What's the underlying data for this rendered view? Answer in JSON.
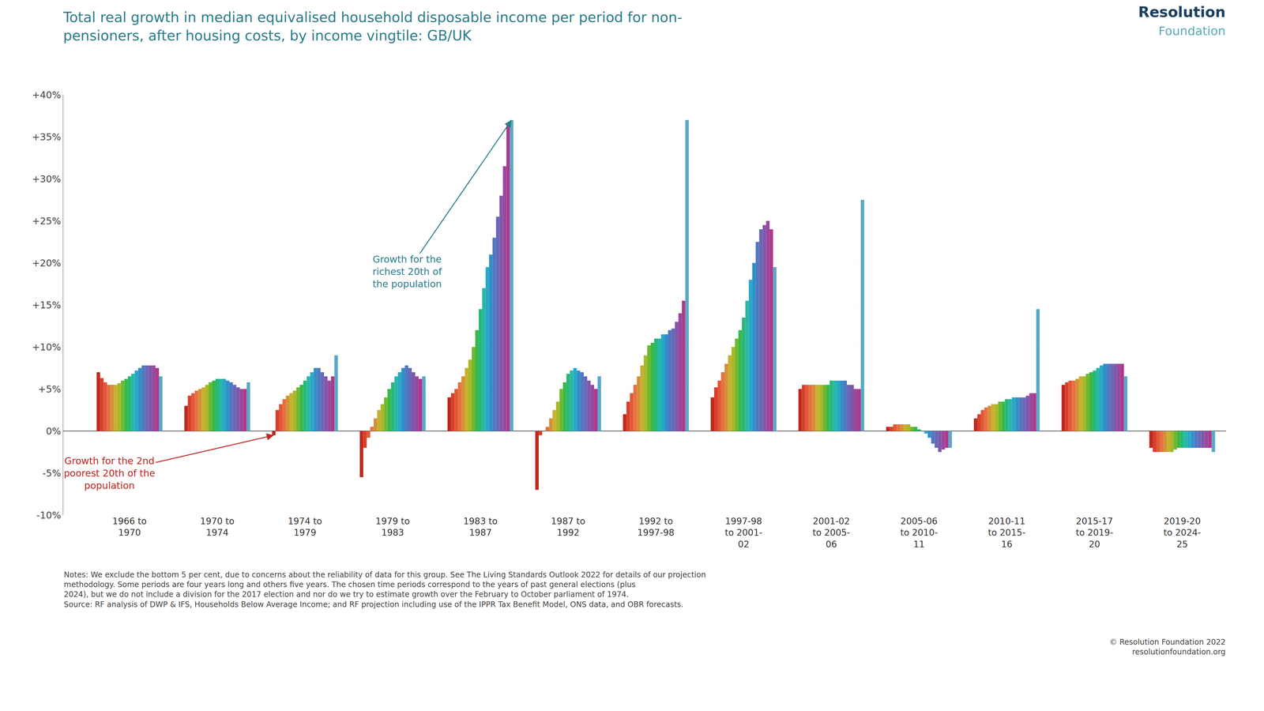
{
  "chart_data": {
    "type": "bar",
    "title": "Total real growth in median equivalised household disposable income per period for non-\npensioners, after housing costs, by income vingtile: GB/UK",
    "categories": [
      "1966 to\n1970",
      "1970 to\n1974",
      "1974 to\n1979",
      "1979 to\n1983",
      "1983 to\n1987",
      "1987 to\n1992",
      "1992 to\n1997-98",
      "1997-98\nto 2001-\n02",
      "2001-02\nto 2005-\n06",
      "2005-06\nto 2010-\n11",
      "2010-11\nto 2015-\n16",
      "2015-17\nto 2019-\n20",
      "2019-20\nto 2024-\n25"
    ],
    "series": [
      {
        "color": "#c0281e",
        "values": [
          7.0,
          3.0,
          -0.5,
          -5.5,
          4.0,
          -7.0,
          2.0,
          4.0,
          5.0,
          0.5,
          1.5,
          5.5,
          -2.0
        ]
      },
      {
        "color": "#d93f2a",
        "values": [
          6.3,
          4.2,
          2.5,
          -2.0,
          4.5,
          -0.5,
          3.5,
          5.2,
          5.5,
          0.5,
          2.0,
          5.8,
          -2.5
        ]
      },
      {
        "color": "#e05838",
        "values": [
          5.8,
          4.5,
          3.2,
          -0.8,
          5.0,
          0.0,
          4.5,
          6.0,
          5.5,
          0.8,
          2.5,
          6.0,
          -2.5
        ]
      },
      {
        "color": "#e87040",
        "values": [
          5.5,
          4.8,
          3.8,
          0.5,
          5.8,
          0.5,
          5.5,
          7.0,
          5.5,
          0.8,
          2.8,
          6.0,
          -2.5
        ]
      },
      {
        "color": "#d49038",
        "values": [
          5.5,
          5.0,
          4.2,
          1.5,
          6.5,
          1.5,
          6.5,
          8.0,
          5.5,
          0.8,
          3.0,
          6.2,
          -2.5
        ]
      },
      {
        "color": "#c8b030",
        "values": [
          5.5,
          5.2,
          4.5,
          2.5,
          7.5,
          2.5,
          7.8,
          9.0,
          5.5,
          0.8,
          3.2,
          6.5,
          -2.5
        ]
      },
      {
        "color": "#a8b828",
        "values": [
          5.7,
          5.5,
          4.8,
          3.2,
          8.5,
          3.5,
          9.0,
          10.0,
          5.5,
          0.8,
          3.2,
          6.5,
          -2.5
        ]
      },
      {
        "color": "#70b830",
        "values": [
          6.0,
          5.8,
          5.2,
          4.0,
          10.0,
          5.0,
          10.2,
          11.0,
          5.5,
          0.5,
          3.5,
          6.8,
          -2.2
        ]
      },
      {
        "color": "#38b848",
        "values": [
          6.2,
          6.0,
          5.5,
          5.0,
          12.0,
          5.8,
          10.5,
          12.0,
          5.5,
          0.5,
          3.5,
          7.0,
          -2.0
        ]
      },
      {
        "color": "#28b878",
        "values": [
          6.5,
          6.2,
          6.0,
          5.8,
          14.5,
          6.8,
          11.0,
          13.5,
          6.0,
          0.2,
          3.8,
          7.2,
          -2.0
        ]
      },
      {
        "color": "#28b8a8",
        "values": [
          6.8,
          6.2,
          6.5,
          6.5,
          17.0,
          7.2,
          11.0,
          15.5,
          6.0,
          0.0,
          3.8,
          7.5,
          -2.0
        ]
      },
      {
        "color": "#28a8c8",
        "values": [
          7.2,
          6.2,
          7.0,
          7.0,
          19.5,
          7.5,
          11.5,
          18.0,
          6.0,
          -0.3,
          4.0,
          7.8,
          -2.0
        ]
      },
      {
        "color": "#3090c8",
        "values": [
          7.5,
          6.0,
          7.5,
          7.5,
          21.0,
          7.2,
          11.5,
          20.0,
          6.0,
          -0.8,
          4.0,
          8.0,
          -2.0
        ]
      },
      {
        "color": "#5078c0",
        "values": [
          7.8,
          5.8,
          7.5,
          7.8,
          23.0,
          7.0,
          12.0,
          22.5,
          6.0,
          -1.5,
          4.0,
          8.0,
          -2.0
        ]
      },
      {
        "color": "#6868b8",
        "values": [
          7.8,
          5.5,
          7.0,
          7.5,
          25.5,
          6.5,
          12.2,
          24.0,
          5.5,
          -2.0,
          4.0,
          8.0,
          -2.0
        ]
      },
      {
        "color": "#8058a8",
        "values": [
          7.8,
          5.2,
          6.5,
          7.0,
          28.0,
          6.0,
          13.0,
          24.5,
          5.5,
          -2.5,
          4.2,
          8.0,
          -2.0
        ]
      },
      {
        "color": "#9848a0",
        "values": [
          7.8,
          5.0,
          6.0,
          6.5,
          31.5,
          5.5,
          14.0,
          25.0,
          5.0,
          -2.2,
          4.5,
          8.0,
          -2.0
        ]
      },
      {
        "color": "#b03888",
        "values": [
          7.5,
          5.0,
          6.5,
          6.2,
          36.5,
          5.0,
          15.5,
          24.0,
          5.0,
          -2.0,
          4.5,
          8.0,
          -2.0
        ]
      },
      {
        "color": "#5aa8c8",
        "values": [
          6.5,
          5.8,
          9.0,
          6.5,
          37.0,
          6.5,
          37.0,
          19.5,
          27.5,
          -2.0,
          14.5,
          6.5,
          -2.5
        ]
      }
    ],
    "ylim": [
      -10,
      40
    ],
    "yticks": [
      {
        "value": -10,
        "label": "-10%"
      },
      {
        "value": -5,
        "label": "-5%"
      },
      {
        "value": 0,
        "label": "0%"
      },
      {
        "value": 5,
        "label": "+5%"
      },
      {
        "value": 10,
        "label": "+10%"
      },
      {
        "value": 15,
        "label": "+15%"
      },
      {
        "value": 20,
        "label": "+20%"
      },
      {
        "value": 25,
        "label": "+25%"
      },
      {
        "value": 30,
        "label": "+30%"
      },
      {
        "value": 35,
        "label": "+35%"
      },
      {
        "value": 40,
        "label": "+40%"
      }
    ],
    "grid": true,
    "annotations": [
      {
        "text": "Growth for the\nrichest 20th of\nthe population",
        "category": "1983 to\n1987",
        "color": "#2a7d8c"
      },
      {
        "text": "Growth for the 2nd\npoorest 20th of the\npopulation",
        "category": "1974 to\n1979",
        "color": "#c0281e"
      }
    ],
    "logo": [
      "Resolution",
      "Foundation"
    ],
    "notes": [
      "Notes: We exclude the bottom 5 per cent, due to concerns about the reliability of data for this group. See The Living Standards Outlook 2022 for details of our projection",
      "methodology. Some periods are four years long and others five years. The chosen time periods correspond to the years of past general elections (plus",
      "2024), but we do not include a division for the 2017 election and nor do we try to estimate growth over the February to October parliament of 1974.",
      "Source: RF analysis of DWP & IFS, Households Below Average Income; and RF projection including use of the IPPR Tax Benefit Model, ONS data, and OBR forecasts."
    ],
    "footer": [
      "© Resolution Foundation 2022",
      "resolutionfoundation.org"
    ]
  }
}
